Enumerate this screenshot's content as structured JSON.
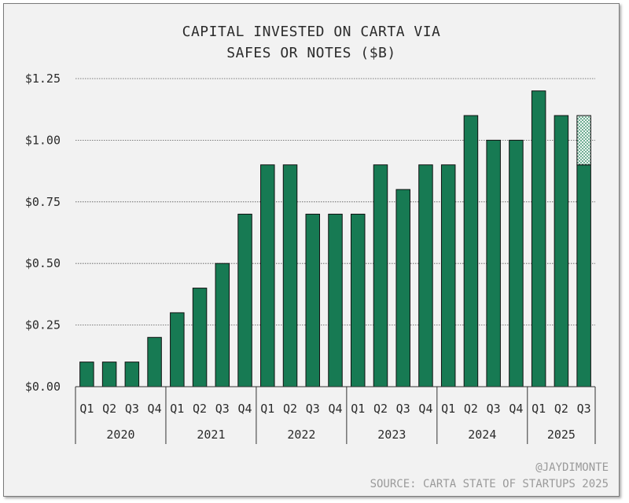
{
  "chart_data": {
    "type": "bar",
    "title_lines": [
      "CAPITAL INVESTED ON CARTA VIA",
      "SAFES OR NOTES ($B)"
    ],
    "ylim": [
      0,
      1.25
    ],
    "y_ticks": [
      0,
      0.25,
      0.5,
      0.75,
      1.0,
      1.25
    ],
    "y_tick_labels": [
      "$0.00",
      "$0.25",
      "$0.50",
      "$0.75",
      "$1.00",
      "$1.25"
    ],
    "grid": true,
    "categories": [
      "Q1",
      "Q2",
      "Q3",
      "Q4",
      "Q1",
      "Q2",
      "Q3",
      "Q4",
      "Q1",
      "Q2",
      "Q3",
      "Q4",
      "Q1",
      "Q2",
      "Q3",
      "Q4",
      "Q1",
      "Q2",
      "Q3",
      "Q4",
      "Q1",
      "Q2",
      "Q3"
    ],
    "years": [
      {
        "label": "2020",
        "count": 4
      },
      {
        "label": "2021",
        "count": 4
      },
      {
        "label": "2022",
        "count": 4
      },
      {
        "label": "2023",
        "count": 4
      },
      {
        "label": "2024",
        "count": 4
      },
      {
        "label": "2025",
        "count": 3
      }
    ],
    "series": [
      {
        "name": "Reported",
        "color": "#177a53",
        "values": [
          0.1,
          0.1,
          0.1,
          0.2,
          0.3,
          0.4,
          0.5,
          0.7,
          0.9,
          0.9,
          0.7,
          0.7,
          0.7,
          0.9,
          0.8,
          0.9,
          0.9,
          1.1,
          1.0,
          1.0,
          1.2,
          1.1,
          0.9
        ]
      },
      {
        "name": "Projected",
        "color": "#177a53",
        "pattern": "dotted",
        "values": [
          0,
          0,
          0,
          0,
          0,
          0,
          0,
          0,
          0,
          0,
          0,
          0,
          0,
          0,
          0,
          0,
          0,
          0,
          0,
          0,
          0,
          0,
          0.2
        ]
      }
    ]
  },
  "footer": {
    "handle": "@JAYDIMONTE",
    "source": "SOURCE: CARTA STATE OF STARTUPS 2025"
  }
}
